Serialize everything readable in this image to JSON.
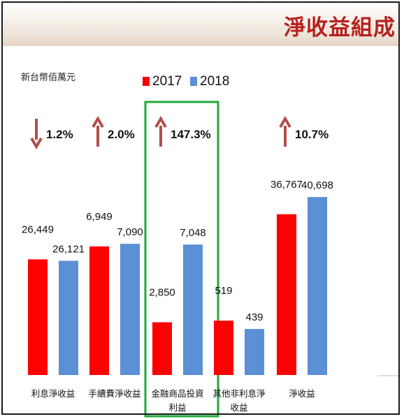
{
  "title": "淨收益組成",
  "unit_label": "新台幣佰萬元",
  "colors": {
    "title": "#b7201e",
    "y2017": "#fe0000",
    "y2018": "#5b8fd6",
    "highlight": "#1eaa3a",
    "arrow": "#b0504c"
  },
  "chart_data": {
    "type": "bar",
    "categories": [
      {
        "lines": [
          "利息淨收益"
        ]
      },
      {
        "lines": [
          "手續費淨收益"
        ]
      },
      {
        "lines": [
          "金融商品投資",
          "利益"
        ]
      },
      {
        "lines": [
          "其他非利息淨",
          "收益"
        ]
      },
      {
        "lines": [
          "淨收益"
        ]
      }
    ],
    "series": [
      {
        "name": "2017",
        "values": [
          26449,
          6949,
          2850,
          519,
          36767
        ],
        "labels": [
          "26,449",
          "6,949",
          "2,850",
          "519",
          "36,767"
        ]
      },
      {
        "name": "2018",
        "values": [
          26121,
          7090,
          7048,
          439,
          40698
        ],
        "labels": [
          "26,121",
          "7,090",
          "7,048",
          "439",
          "40,698"
        ]
      }
    ],
    "changes": [
      {
        "category": "利息淨收益",
        "direction": "down",
        "text": "1.2%"
      },
      {
        "category": "手續費淨收益",
        "direction": "up",
        "text": "2.0%"
      },
      {
        "category": "金融商品投資利益",
        "direction": "up",
        "text": "147.3%"
      },
      {
        "category": "淨收益",
        "direction": "up",
        "text": "10.7%"
      }
    ],
    "highlighted_category": "金融商品投資利益",
    "axis_scale": "broken"
  }
}
